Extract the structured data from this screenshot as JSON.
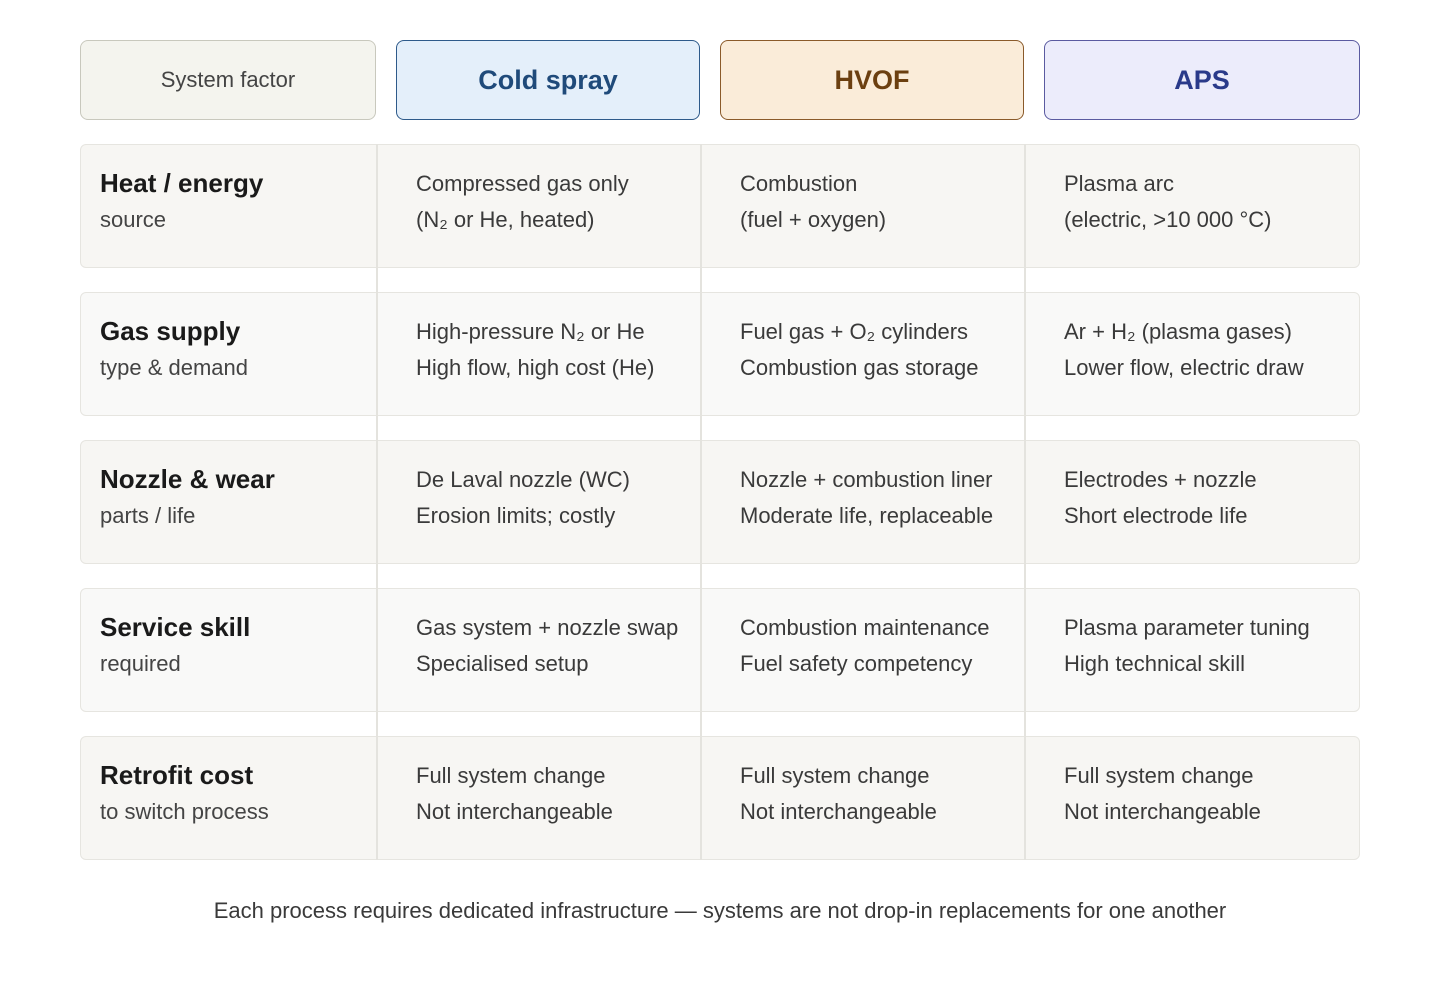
{
  "header": {
    "columns": [
      "System factor",
      "Cold spray",
      "HVOF",
      "APS"
    ]
  },
  "table": {
    "rows": [
      {
        "label": "Heat / energy",
        "sublabel": "source",
        "cells": [
          [
            "Compressed gas only",
            "(N₂ or He, heated)"
          ],
          [
            "Combustion",
            "(fuel + oxygen)"
          ],
          [
            "Plasma arc",
            "(electric, >10 000 °C)"
          ]
        ]
      },
      {
        "label": "Gas supply",
        "sublabel": "type & demand",
        "cells": [
          [
            "High-pressure N₂ or He",
            "High flow, high cost (He)"
          ],
          [
            "Fuel gas + O₂ cylinders",
            "Combustion gas storage"
          ],
          [
            "Ar + H₂ (plasma gases)",
            "Lower flow, electric draw"
          ]
        ]
      },
      {
        "label": "Nozzle & wear",
        "sublabel": "parts / life",
        "cells": [
          [
            "De Laval nozzle (WC)",
            "Erosion limits; costly"
          ],
          [
            "Nozzle + combustion liner",
            "Moderate life, replaceable"
          ],
          [
            "Electrodes + nozzle",
            "Short electrode life"
          ]
        ]
      },
      {
        "label": "Service skill",
        "sublabel": "required",
        "cells": [
          [
            "Gas system + nozzle swap",
            "Specialised setup"
          ],
          [
            "Combustion maintenance",
            "Fuel safety competency"
          ],
          [
            "Plasma parameter tuning",
            "High technical skill"
          ]
        ]
      },
      {
        "label": "Retrofit cost",
        "sublabel": "to switch process",
        "cells": [
          [
            "Full system change",
            "Not interchangeable"
          ],
          [
            "Full system change",
            "Not interchangeable"
          ],
          [
            "Full system change",
            "Not interchangeable"
          ]
        ]
      }
    ]
  },
  "footer": "Each process requires dedicated infrastructure — systems are not drop-in replacements for one another"
}
